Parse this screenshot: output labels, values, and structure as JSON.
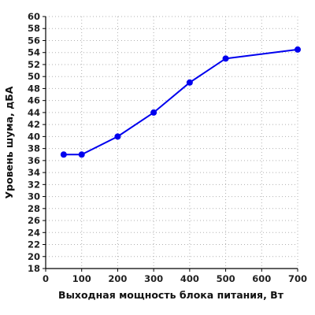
{
  "chart_data": {
    "type": "line",
    "xlabel": "Выходная мощность блока питания, Вт",
    "ylabel": "Уровень шума, дБА",
    "xlim": [
      0,
      700
    ],
    "ylim": [
      18,
      60
    ],
    "x_ticks": [
      0,
      100,
      200,
      300,
      400,
      500,
      600,
      700
    ],
    "y_ticks": [
      18,
      20,
      22,
      24,
      26,
      28,
      30,
      32,
      34,
      36,
      38,
      40,
      42,
      44,
      46,
      48,
      50,
      52,
      54,
      56,
      58,
      60
    ],
    "grid": true,
    "x": [
      50,
      100,
      200,
      300,
      400,
      500,
      700
    ],
    "series": [
      {
        "values": [
          37,
          37,
          40,
          44,
          49,
          53,
          54.5
        ],
        "color": "#0000ee"
      }
    ]
  }
}
